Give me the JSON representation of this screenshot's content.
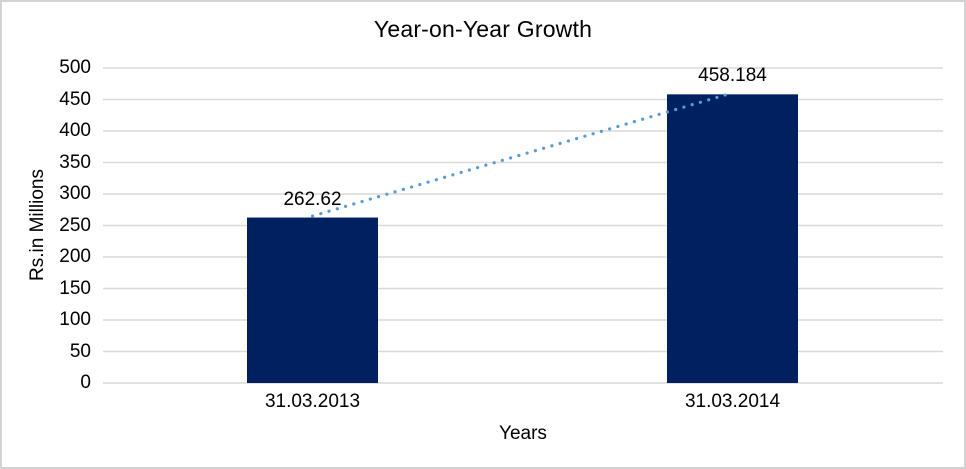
{
  "window": {
    "background_color": "#FFFFFF",
    "border_color": "#D2D2D2"
  },
  "chart_data": {
    "type": "bar",
    "title": "Year-on-Year Growth",
    "xlabel": "Years",
    "ylabel": "Rs.in Millions",
    "categories": [
      "31.03.2013",
      "31.03.2014"
    ],
    "values": [
      262.62,
      458.184
    ],
    "data_labels": [
      "262.62",
      "458.184"
    ],
    "yticks": [
      0,
      50,
      100,
      150,
      200,
      250,
      300,
      350,
      400,
      450,
      500
    ],
    "ylim": [
      0,
      500
    ],
    "grid": "horizontal",
    "legend": "none",
    "trendline": {
      "type": "linear",
      "style": "dotted",
      "color": "#5B9BD5"
    },
    "bar_color": "#002060",
    "gridline_color": "#D9D9D9",
    "text_color": "#000000"
  }
}
